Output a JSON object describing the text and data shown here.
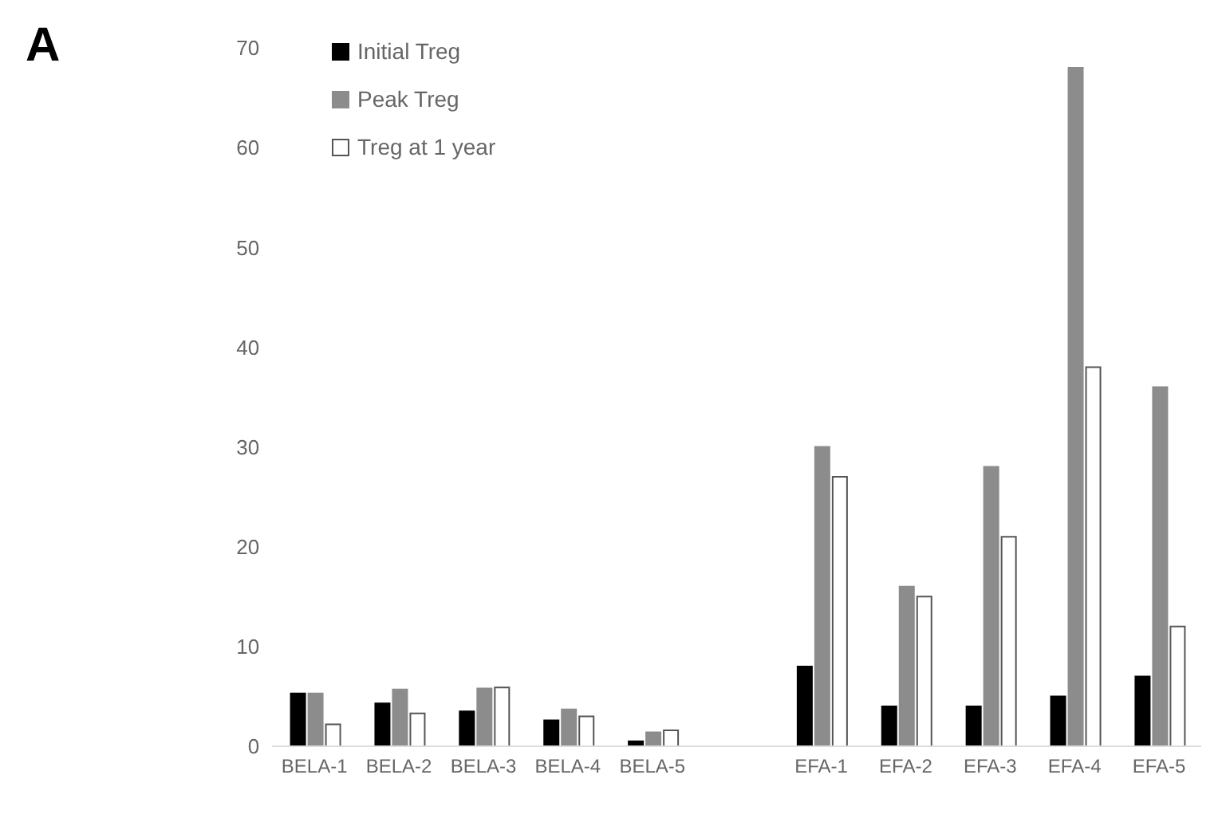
{
  "chart_data": {
    "type": "bar",
    "annotations": [
      "A"
    ],
    "categories": [
      "BELA-1",
      "BELA-2",
      "BELA-3",
      "BELA-4",
      "BELA-5",
      null,
      "EFA-1",
      "EFA-2",
      "EFA-3",
      "EFA-4",
      "EFA-5"
    ],
    "series": [
      {
        "name": "Initial Treg",
        "color": "#000000",
        "values": [
          5.3,
          4.3,
          3.5,
          2.6,
          0.5,
          null,
          8,
          4,
          4,
          5,
          7
        ]
      },
      {
        "name": "Peak Treg",
        "color": "#8c8c8c",
        "values": [
          5.3,
          5.7,
          5.8,
          3.7,
          1.4,
          null,
          30,
          16,
          28,
          68,
          36
        ]
      },
      {
        "name": "Treg at 1 year",
        "color": "#ffffff",
        "values": [
          2.2,
          3.3,
          5.9,
          3.0,
          1.6,
          null,
          27,
          15,
          21,
          38,
          12
        ]
      }
    ],
    "ylim": [
      0,
      70
    ],
    "yticks": [
      0,
      10,
      20,
      30,
      40,
      50,
      60,
      70
    ],
    "grid": false,
    "legend": "top left"
  }
}
